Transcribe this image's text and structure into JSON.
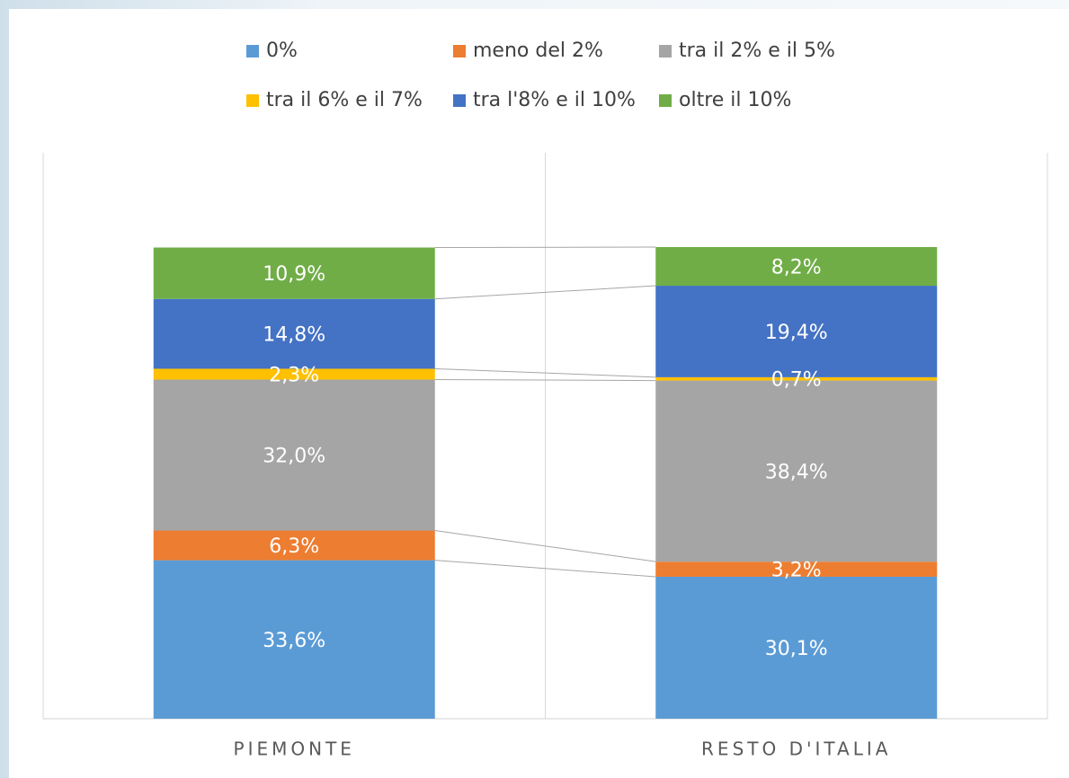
{
  "chart_data": {
    "type": "stacked_bar",
    "categories": [
      "PIEMONTE",
      "RESTO D'ITALIA"
    ],
    "series": [
      {
        "name": "0%",
        "color": "#5b9bd5",
        "values": [
          33.6,
          30.1
        ],
        "value_labels": [
          "33,6%",
          "30,1%"
        ]
      },
      {
        "name": "meno del 2%",
        "color": "#ed7d31",
        "values": [
          6.3,
          3.2
        ],
        "value_labels": [
          "6,3%",
          "3,2%"
        ]
      },
      {
        "name": "tra il 2% e il 5%",
        "color": "#a5a5a5",
        "values": [
          32.0,
          38.4
        ],
        "value_labels": [
          "32,0%",
          "38,4%"
        ]
      },
      {
        "name": "tra il 6% e il 7%",
        "color": "#ffc000",
        "values": [
          2.3,
          0.7
        ],
        "value_labels": [
          "2,3%",
          "0,7%"
        ]
      },
      {
        "name": "tra l'8% e il 10%",
        "color": "#4472c4",
        "values": [
          14.8,
          19.4
        ],
        "value_labels": [
          "14,8%",
          "19,4%"
        ]
      },
      {
        "name": "oltre il 10%",
        "color": "#70ad47",
        "values": [
          10.9,
          8.2
        ],
        "value_labels": [
          "10,9%",
          "8,2%"
        ]
      }
    ],
    "ylim": [
      0,
      120
    ],
    "legend": "top"
  }
}
